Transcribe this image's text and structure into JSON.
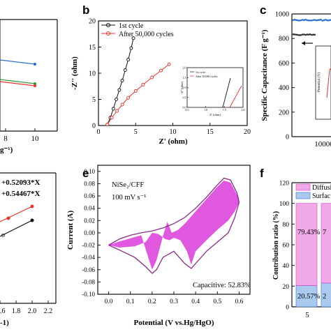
{
  "panel_labels": {
    "b": "b",
    "c": "c",
    "e": "e",
    "f": "f"
  },
  "panel_a_top": {
    "xlabel": "g⁻¹)",
    "xticks": [
      "8",
      "10"
    ]
  },
  "panel_b": {
    "ylabel": "-Z'' (ohm)",
    "xlabel": "Z' (ohm)",
    "legend": [
      "1st cycle",
      "After 50,000 cycles"
    ],
    "inset_legend": [
      "1st cycle",
      "After 50,000 cycles"
    ],
    "inset_xlabel": "Z' (ohm)",
    "inset_ylabel": "-Z'' (ohm)"
  },
  "panel_c": {
    "ylabel": "Specific Capacitance (F g⁻¹)",
    "xtick_partial": "10000",
    "inset_ylabel": "Potential (V)"
  },
  "panel_d_bottom": {
    "eq1": "+0.52093*X",
    "eq2": "+0.54467*X",
    "xlabel": "-1)"
  },
  "panel_e": {
    "ylabel": "Current (A)",
    "xlabel": "Potential (V vs.Hg/HgO)",
    "sample_label": "NiSe₂/CFF",
    "rate_label": "100 mV s⁻¹",
    "capacitive_label": "Capacitive: 52.83%"
  },
  "panel_f": {
    "ylabel": "Contribution ratio (%)",
    "legend": [
      "Diffusi",
      "Surfac"
    ],
    "bar1_top_label": "79.43%",
    "bar1_bottom_label": "20.57%",
    "bar2_top_label": "7",
    "bar2_bottom_label": "2",
    "xtick": "5"
  },
  "colors": {
    "black": "#111111",
    "red": "#e8322b",
    "blue": "#2a6fd0",
    "green": "#2f9a3c",
    "magenta": "#d93bd9",
    "pink_bar": "#f0a8e6",
    "light_blue_bar": "#a9c9ef"
  },
  "chart_data": [
    {
      "type": "line",
      "panel": "a",
      "x": [
        8,
        10
      ],
      "series": [
        {
          "values": [
            null,
            null
          ]
        }
      ],
      "xlim": [
        7,
        11
      ],
      "ylim": [
        0,
        1
      ]
    },
    {
      "type": "line",
      "panel": "b",
      "xlabel": "Z' (ohm)",
      "ylabel": "-Z'' (ohm)",
      "xlim": [
        0,
        20
      ],
      "ylim": [
        0,
        20
      ],
      "xticks": [
        0,
        5,
        10,
        15,
        20
      ],
      "yticks": [
        0,
        5,
        10,
        15,
        20
      ],
      "series": [
        {
          "name": "1st cycle",
          "x": [
            1.2,
            1.6,
            2.0,
            2.4,
            2.8,
            3.2,
            3.6,
            4.0,
            4.4,
            4.7
          ],
          "y": [
            0.2,
            1.5,
            3.2,
            5.0,
            6.8,
            8.6,
            10.6,
            12.6,
            14.8,
            16.7
          ]
        },
        {
          "name": "After 50,000 cycles",
          "x": [
            1.2,
            1.8,
            2.5,
            3.2,
            4.0,
            5.0,
            6.0,
            7.2,
            8.4,
            9.5
          ],
          "y": [
            0.2,
            1.5,
            2.8,
            4.0,
            5.3,
            6.6,
            7.8,
            9.2,
            10.5,
            11.7
          ]
        }
      ]
    },
    {
      "type": "line",
      "panel": "b-inset",
      "xlim": [
        0.5,
        2.0
      ],
      "ylim": [
        0,
        2.0
      ],
      "xticks": [
        0.5,
        1.0,
        1.5,
        2.0
      ],
      "yticks": [
        0,
        0.5,
        1.0,
        1.5,
        2.0
      ]
    },
    {
      "type": "scatter",
      "panel": "c",
      "ylabel": "Specific Capacitance (F g⁻¹)",
      "ylim": [
        0,
        1000
      ],
      "yticks": [
        0,
        200,
        400,
        600,
        800,
        1000
      ],
      "xlim": [
        0,
        15000
      ]
    },
    {
      "type": "line",
      "panel": "e",
      "xlabel": "Potential (V vs.Hg/HgO)",
      "ylabel": "Current (A)",
      "xlim": [
        -0.05,
        0.65
      ],
      "ylim": [
        -0.1,
        0.11
      ],
      "xticks": [
        0.0,
        0.1,
        0.2,
        0.3,
        0.4,
        0.5,
        0.6
      ],
      "yticks": [
        -0.1,
        -0.08,
        -0.06,
        -0.04,
        -0.02,
        0.0,
        0.02,
        0.04,
        0.06,
        0.08,
        0.1
      ]
    },
    {
      "type": "bar",
      "panel": "f",
      "ylabel": "Contribution ratio (%)",
      "ylim": [
        0,
        120
      ],
      "yticks": [
        0,
        20,
        40,
        60,
        80,
        100,
        120
      ],
      "categories": [
        "5",
        ""
      ],
      "series": [
        {
          "name": "Diffusi",
          "values": [
            79.43,
            77
          ]
        },
        {
          "name": "Surfac",
          "values": [
            20.57,
            23
          ]
        }
      ]
    }
  ]
}
